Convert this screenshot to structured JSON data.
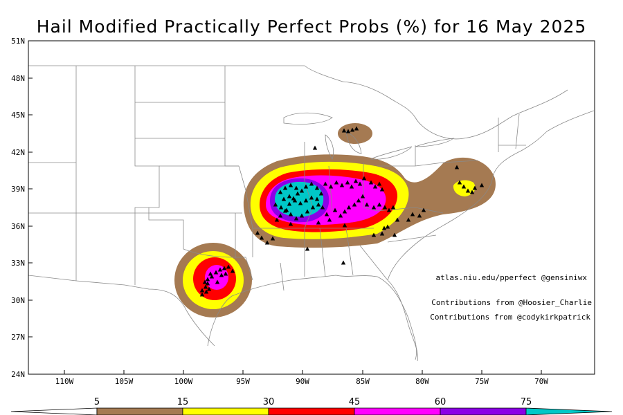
{
  "title": "Hail Modified Practically Perfect Probs (%) for 16 May 2025",
  "lat_ticks": [
    "51N",
    "48N",
    "45N",
    "42N",
    "39N",
    "36N",
    "33N",
    "30N",
    "27N",
    "24N"
  ],
  "lon_ticks": [
    "110W",
    "105W",
    "100W",
    "95W",
    "90W",
    "85W",
    "80W",
    "75W",
    "70W"
  ],
  "credits": {
    "site": "atlas.niu.edu/pperfect @gensiniwx",
    "contrib1": "Contributions from @Hoosier_Charlie",
    "contrib2": "Contributions from @codykirkpatrick"
  },
  "colorbar": {
    "labels": [
      "5",
      "15",
      "30",
      "45",
      "60",
      "75"
    ],
    "colors": [
      "#a57a52",
      "#ffff00",
      "#ff0000",
      "#ff00ff",
      "#8b00e6",
      "#00c8c8"
    ]
  },
  "map": {
    "lon_range": [
      -113,
      -64
    ],
    "lat_range": [
      24,
      51
    ],
    "probability_contours": [
      {
        "region": "midwest-ohio-valley",
        "levels": [
          5,
          15,
          30,
          45,
          60,
          75
        ]
      },
      {
        "region": "north-texas",
        "levels": [
          5,
          15,
          30,
          45
        ]
      },
      {
        "region": "mid-atlantic",
        "levels": [
          5,
          15
        ]
      },
      {
        "region": "northern-michigan",
        "levels": [
          5
        ]
      }
    ],
    "report_marker": "triangle-icon"
  }
}
